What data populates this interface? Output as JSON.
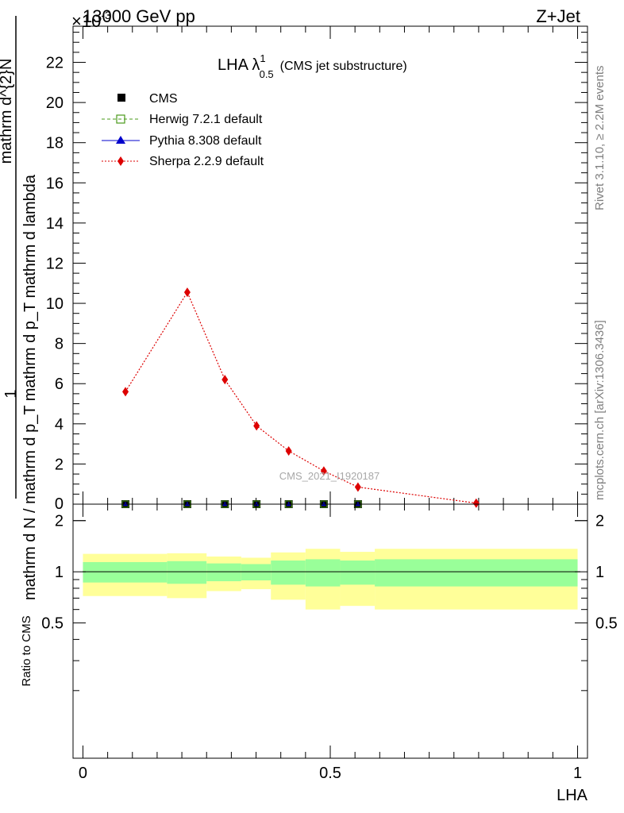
{
  "header": {
    "process": "13000 GeV pp",
    "channel": "Z+Jet",
    "exponent": "×10",
    "exponent_power": "-3"
  },
  "side_labels": {
    "rivet": "Rivet 3.1.10, ≥ 2.2M events",
    "mcplots": "mcplots.cern.ch [arXiv:1306.3436]"
  },
  "plot_title": {
    "main": "LHA λ",
    "sup": "1",
    "sub": "0.5",
    "rest": "(CMS jet substructure)"
  },
  "watermark": "CMS_2021_I1920187",
  "ylabel_main": {
    "one": "1",
    "numerator": "mathrm d^{2}N",
    "denominator": "mathrm d N / mathrm d p_T mathrm d p_T mathrm d lambda"
  },
  "ylabel_ratio": "Ratio to CMS",
  "xlabel": "LHA",
  "colors": {
    "herwig": "#4a9a1a",
    "pythia": "#0000cc",
    "sherpa": "#dd0000",
    "band_inner": "#99ff99",
    "band_outer": "#ffff99"
  },
  "chart_data": [
    {
      "type": "line",
      "panel": "main",
      "x": [
        0.086,
        0.211,
        0.287,
        0.351,
        0.416,
        0.487,
        0.556,
        0.795
      ],
      "series": [
        {
          "name": "CMS",
          "values": [
            0,
            0,
            0,
            0,
            0,
            0,
            0,
            0
          ]
        },
        {
          "name": "Herwig 7.2.1 default",
          "values": [
            0,
            0,
            0,
            0,
            0,
            0,
            0,
            0
          ]
        },
        {
          "name": "Pythia 8.308 default",
          "values": [
            0,
            0,
            0,
            0,
            0,
            0,
            0,
            0
          ]
        },
        {
          "name": "Sherpa 2.2.9 default",
          "values": [
            5.6,
            10.55,
            6.2,
            3.9,
            2.65,
            1.65,
            0.85,
            0.05
          ]
        }
      ],
      "xlim": [
        -0.02,
        1.02
      ],
      "ylim": [
        0,
        23.8
      ],
      "yticks": [
        2,
        4,
        6,
        8,
        10,
        12,
        14,
        16,
        18,
        20,
        22
      ],
      "yticks_labels": [
        "2",
        "4",
        "6",
        "8",
        "10",
        "12",
        "14",
        "16",
        "18",
        "20",
        "22"
      ],
      "zero_label": "0",
      "legend": "top-left"
    },
    {
      "type": "area",
      "panel": "ratio",
      "bins": [
        {
          "lo": 0.0,
          "hi": 0.17,
          "inner": [
            0.865,
            1.14
          ],
          "outer": [
            0.72,
            1.275
          ]
        },
        {
          "lo": 0.17,
          "hi": 0.25,
          "inner": [
            0.85,
            1.155
          ],
          "outer": [
            0.7,
            1.285
          ]
        },
        {
          "lo": 0.25,
          "hi": 0.32,
          "inner": [
            0.88,
            1.12
          ],
          "outer": [
            0.77,
            1.23
          ]
        },
        {
          "lo": 0.32,
          "hi": 0.38,
          "inner": [
            0.89,
            1.11
          ],
          "outer": [
            0.79,
            1.21
          ]
        },
        {
          "lo": 0.38,
          "hi": 0.45,
          "inner": [
            0.84,
            1.165
          ],
          "outer": [
            0.685,
            1.3
          ]
        },
        {
          "lo": 0.45,
          "hi": 0.52,
          "inner": [
            0.82,
            1.185
          ],
          "outer": [
            0.6,
            1.365
          ]
        },
        {
          "lo": 0.52,
          "hi": 0.59,
          "inner": [
            0.84,
            1.165
          ],
          "outer": [
            0.63,
            1.31
          ]
        },
        {
          "lo": 0.59,
          "hi": 1.0,
          "inner": [
            0.82,
            1.185
          ],
          "outer": [
            0.6,
            1.365
          ]
        }
      ],
      "reference": 1,
      "xlim": [
        -0.02,
        1.02
      ],
      "ylim": [
        0.08,
        2.5
      ],
      "yticks": [
        0.5,
        1,
        2
      ],
      "yticks_labels": [
        "0.5",
        "1",
        "2"
      ],
      "xticks": [
        0,
        0.5,
        1
      ],
      "xticks_labels": [
        "0",
        "0.5",
        "1"
      ]
    }
  ]
}
